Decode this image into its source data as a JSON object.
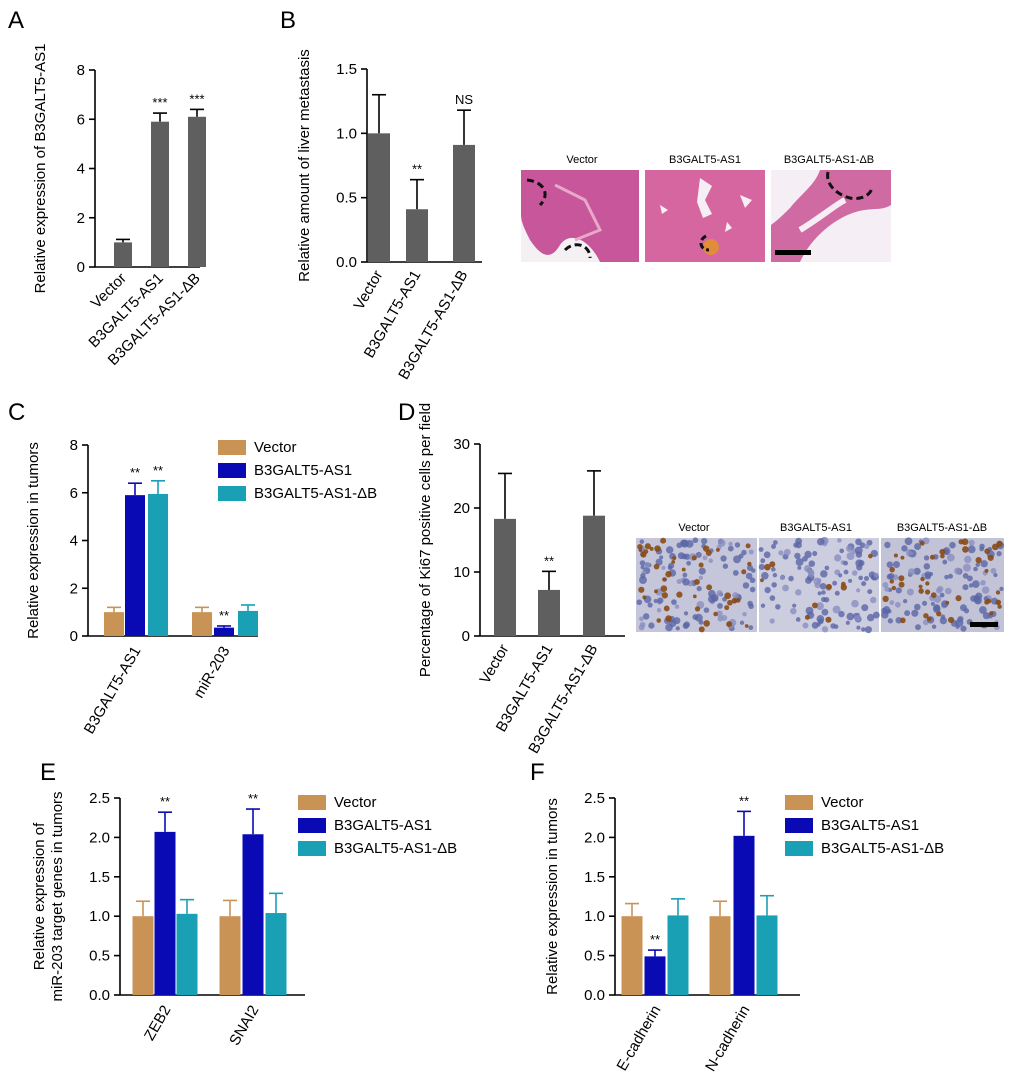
{
  "colors": {
    "gray": "#5f5f5f",
    "vector": "#c99355",
    "b3galt5": "#0a0ab4",
    "delta": "#1aa0b4",
    "he_stain": "#cf5f9a",
    "ihc_stain": "#bfbfd6"
  },
  "legend_labels": [
    "Vector",
    "B3GALT5-AS1",
    "B3GALT5-AS1-ΔB"
  ],
  "photo_labels_B": [
    "Vector",
    "B3GALT5-AS1",
    "B3GALT5-AS1-ΔB"
  ],
  "photo_labels_D": [
    "Vector",
    "B3GALT5-AS1",
    "B3GALT5-AS1-ΔB"
  ],
  "chart_data": [
    {
      "panel": "A",
      "type": "bar",
      "ylabel": "Relative expression of B3GALT5-AS1",
      "ylim": [
        0,
        8
      ],
      "yticks": [
        0,
        2,
        4,
        6,
        8
      ],
      "categories": [
        "Vector",
        "B3GALT5-AS1",
        "B3GALT5-AS1-ΔB"
      ],
      "values": [
        1.0,
        5.9,
        6.1
      ],
      "errors": [
        0.12,
        0.35,
        0.3
      ],
      "significance": [
        "",
        "***",
        "***"
      ]
    },
    {
      "panel": "B",
      "type": "bar",
      "ylabel": "Relative amount of liver metastasis",
      "ylim": [
        0,
        1.5
      ],
      "yticks": [
        0.0,
        0.5,
        1.0,
        1.5
      ],
      "categories": [
        "Vector",
        "B3GALT5-AS1",
        "B3GALT5-AS1-ΔB"
      ],
      "values": [
        1.0,
        0.41,
        0.91
      ],
      "errors": [
        0.3,
        0.23,
        0.27
      ],
      "significance": [
        "",
        "**",
        "NS"
      ]
    },
    {
      "panel": "C",
      "type": "bar",
      "ylabel": "Relative expression in tumors",
      "ylim": [
        0,
        8
      ],
      "yticks": [
        0,
        2,
        4,
        6,
        8
      ],
      "categories": [
        "B3GALT5-AS1",
        "miR-203"
      ],
      "series": [
        {
          "name": "Vector",
          "values": [
            1.0,
            1.0
          ],
          "errors": [
            0.2,
            0.2
          ],
          "significance": [
            "",
            ""
          ]
        },
        {
          "name": "B3GALT5-AS1",
          "values": [
            5.9,
            0.35
          ],
          "errors": [
            0.5,
            0.07
          ],
          "significance": [
            "**",
            "**"
          ]
        },
        {
          "name": "B3GALT5-AS1-ΔB",
          "values": [
            5.95,
            1.05
          ],
          "errors": [
            0.55,
            0.25
          ],
          "significance": [
            "**",
            ""
          ]
        }
      ]
    },
    {
      "panel": "D",
      "type": "bar",
      "ylabel": "Percentage of Ki67 positive cells per field",
      "ylim": [
        0,
        30
      ],
      "yticks": [
        0,
        10,
        20,
        30
      ],
      "categories": [
        "Vector",
        "B3GALT5-AS1",
        "B3GALT5-AS1-ΔB"
      ],
      "values": [
        18.3,
        7.2,
        18.8
      ],
      "errors": [
        7.1,
        2.9,
        7.0
      ],
      "significance": [
        "",
        "**",
        ""
      ]
    },
    {
      "panel": "E",
      "type": "bar",
      "ylabel": "Relative expression of\nmiR-203 target genes in tumors",
      "ylim": [
        0,
        2.5
      ],
      "yticks": [
        0.0,
        0.5,
        1.0,
        1.5,
        2.0,
        2.5
      ],
      "categories": [
        "ZEB2",
        "SNAI2"
      ],
      "series": [
        {
          "name": "Vector",
          "values": [
            1.0,
            1.0
          ],
          "errors": [
            0.19,
            0.2
          ],
          "significance": [
            "",
            ""
          ]
        },
        {
          "name": "B3GALT5-AS1",
          "values": [
            2.07,
            2.04
          ],
          "errors": [
            0.25,
            0.32
          ],
          "significance": [
            "**",
            "**"
          ]
        },
        {
          "name": "B3GALT5-AS1-ΔB",
          "values": [
            1.03,
            1.04
          ],
          "errors": [
            0.18,
            0.25
          ],
          "significance": [
            "",
            ""
          ]
        }
      ]
    },
    {
      "panel": "F",
      "type": "bar",
      "ylabel": "Relative expression in tumors",
      "ylim": [
        0,
        2.5
      ],
      "yticks": [
        0.0,
        0.5,
        1.0,
        1.5,
        2.0,
        2.5
      ],
      "categories": [
        "E-cadherin",
        "N-cadherin"
      ],
      "series": [
        {
          "name": "Vector",
          "values": [
            1.0,
            1.0
          ],
          "errors": [
            0.16,
            0.19
          ],
          "significance": [
            "",
            ""
          ]
        },
        {
          "name": "B3GALT5-AS1",
          "values": [
            0.49,
            2.02
          ],
          "errors": [
            0.08,
            0.31
          ],
          "significance": [
            "**",
            "**"
          ]
        },
        {
          "name": "B3GALT5-AS1-ΔB",
          "values": [
            1.01,
            1.01
          ],
          "errors": [
            0.21,
            0.25
          ],
          "significance": [
            "",
            ""
          ]
        }
      ]
    }
  ]
}
